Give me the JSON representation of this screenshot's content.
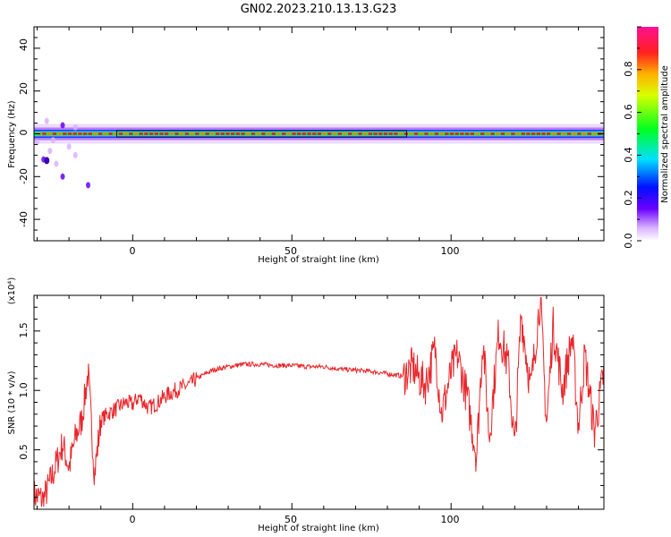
{
  "title": "GN02.2023.210.13.13.G23",
  "colors": {
    "snr_line": "#e8262b",
    "axes": "#000000",
    "background": "#ffffff"
  },
  "colorbar": {
    "label": "Normalized spectral amplitude",
    "ticks": [
      "0.0",
      "0.2",
      "0.4",
      "0.6",
      "0.8"
    ],
    "range": [
      0,
      1
    ],
    "colormap": "hsv-like (white → violet → blue → cyan → green → yellow → orange → red → magenta)"
  },
  "chart_data": [
    {
      "type": "heatmap",
      "xlabel": "Height of straight line (km)",
      "ylabel": "Frequency (Hz)",
      "xlim": [
        -31,
        148
      ],
      "ylim": [
        -50,
        50
      ],
      "xticks": [
        "0",
        "50",
        "100"
      ],
      "yticks": [
        "40",
        "20",
        "0",
        "-20",
        "-40"
      ],
      "description_values": {
        "main_ridge_frequency_hz": 0,
        "main_ridge_amplitude": 0.9,
        "spread_hz_low_heights": [
          -25,
          5
        ],
        "spread_hz_high_heights": [
          -5,
          5
        ]
      }
    },
    {
      "type": "line",
      "xlabel": "Height of straight line (km)",
      "ylabel": "SNR (10 * v/v)",
      "multiplier": "(x10⁴)",
      "xlim": [
        -31,
        148
      ],
      "ylim": [
        0,
        1.8
      ],
      "xticks": [
        "0",
        "50",
        "100"
      ],
      "yticks": [
        "0.5",
        "1.0",
        "1.5"
      ],
      "series": [
        {
          "x": [
            -31,
            -28,
            -25,
            -22,
            -20,
            -18,
            -16,
            -14,
            -12,
            -10,
            -8,
            -5,
            -2,
            0,
            2,
            5,
            8,
            10,
            12,
            15,
            18,
            20,
            25,
            30,
            35,
            40,
            45,
            50,
            55,
            60,
            65,
            70,
            75,
            80,
            85,
            88,
            90,
            92,
            95,
            97,
            100,
            102,
            105,
            108,
            110,
            112,
            115,
            118,
            120,
            122,
            125,
            128,
            130,
            132,
            135,
            138,
            140,
            142,
            145,
            148
          ],
          "y": [
            0.12,
            0.08,
            0.3,
            0.55,
            0.35,
            0.6,
            0.75,
            1.15,
            0.3,
            0.75,
            0.8,
            0.85,
            0.9,
            0.88,
            0.95,
            0.85,
            0.9,
            0.95,
            0.98,
            1.02,
            1.05,
            1.1,
            1.17,
            1.2,
            1.22,
            1.22,
            1.21,
            1.21,
            1.2,
            1.2,
            1.18,
            1.17,
            1.16,
            1.14,
            1.12,
            1.2,
            1.1,
            1.05,
            1.35,
            0.8,
            1.15,
            1.3,
            0.95,
            0.45,
            1.45,
            0.6,
            1.5,
            1.2,
            0.5,
            1.65,
            1.0,
            1.78,
            0.7,
            1.55,
            1.0,
            1.45,
            0.7,
            1.3,
            0.65,
            1.15
          ]
        }
      ]
    }
  ]
}
